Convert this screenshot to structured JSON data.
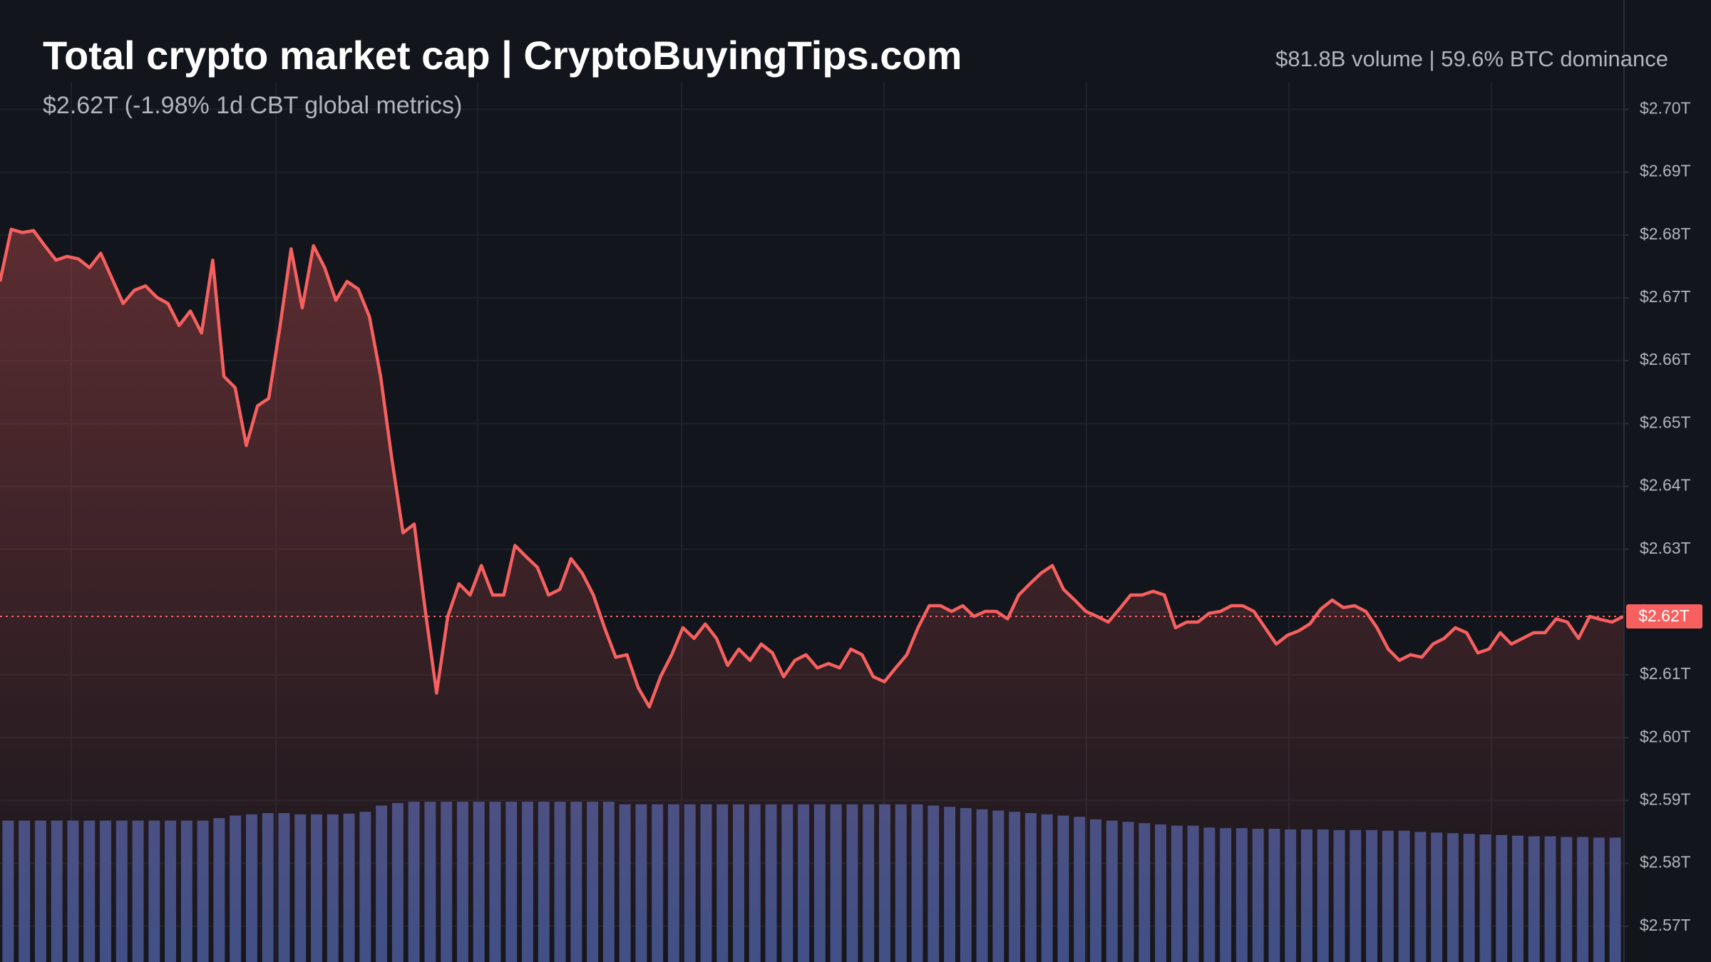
{
  "chart_data": {
    "type": "line",
    "title": "Total crypto market cap | CryptoBuyingTips.com",
    "subtitle": "$2.62T (-1.98% 1d CBT global metrics)",
    "header_right": "$81.8B volume | 59.6% BTC dominance",
    "last_price_label": "$2.62T",
    "color": "#f7605f",
    "volume_color": "#3d4f86",
    "grid": true,
    "ylim": [
      2.5643,
      2.7174
    ],
    "yticks": [
      {
        "value": 2.57,
        "label": "$2.57T"
      },
      {
        "value": 2.58,
        "label": "$2.58T"
      },
      {
        "value": 2.59,
        "label": "$2.59T"
      },
      {
        "value": 2.6,
        "label": "$2.60T"
      },
      {
        "value": 2.61,
        "label": "$2.61T"
      },
      {
        "value": 2.62,
        "label": "$2.62T"
      },
      {
        "value": 2.63,
        "label": "$2.63T"
      },
      {
        "value": 2.64,
        "label": "$2.64T"
      },
      {
        "value": 2.65,
        "label": "$2.65T"
      },
      {
        "value": 2.66,
        "label": "$2.66T"
      },
      {
        "value": 2.67,
        "label": "$2.67T"
      },
      {
        "value": 2.68,
        "label": "$2.68T"
      },
      {
        "value": 2.69,
        "label": "$2.69T"
      },
      {
        "value": 2.7,
        "label": "$2.70T"
      }
    ],
    "values": [
      2.6726,
      2.6809,
      2.6804,
      2.6807,
      2.6783,
      2.676,
      2.6766,
      2.6762,
      2.6748,
      2.6771,
      2.6731,
      2.6691,
      2.6712,
      2.6719,
      2.6701,
      2.6691,
      2.6656,
      2.6679,
      2.6644,
      2.676,
      2.6575,
      2.6557,
      2.6465,
      2.6528,
      2.654,
      2.6653,
      2.6778,
      2.6684,
      2.6783,
      2.6748,
      2.6696,
      2.6726,
      2.6714,
      2.667,
      2.6575,
      2.6444,
      2.6326,
      2.634,
      2.6201,
      2.6071,
      2.6193,
      2.6245,
      2.6227,
      2.6274,
      2.6227,
      2.6227,
      2.6306,
      2.6288,
      2.6271,
      2.6227,
      2.6236,
      2.6285,
      2.6262,
      2.6227,
      2.6175,
      2.6128,
      2.6132,
      2.608,
      2.6049,
      2.6097,
      2.6132,
      2.6175,
      2.6158,
      2.6181,
      2.6158,
      2.6115,
      2.6141,
      2.6123,
      2.6149,
      2.6135,
      2.6097,
      2.6123,
      2.6132,
      2.6111,
      2.6118,
      2.6111,
      2.6141,
      2.6132,
      2.6097,
      2.6089,
      2.6111,
      2.6132,
      2.6175,
      2.621,
      2.621,
      2.6201,
      2.621,
      2.6193,
      2.6201,
      2.6201,
      2.6189,
      2.6227,
      2.6245,
      2.6262,
      2.6274,
      2.6236,
      2.6219,
      2.6201,
      2.6193,
      2.6184,
      2.6205,
      2.6227,
      2.6227,
      2.6233,
      2.6227,
      2.6175,
      2.6184,
      2.6184,
      2.6198,
      2.6201,
      2.621,
      2.621,
      2.6201,
      2.6175,
      2.6149,
      2.6163,
      2.617,
      2.6181,
      2.6205,
      2.6219,
      2.6207,
      2.621,
      2.6201,
      2.6175,
      2.6141,
      2.6123,
      2.6132,
      2.6128,
      2.6149,
      2.6158,
      2.6175,
      2.6167,
      2.6135,
      2.6141,
      2.6167,
      2.6149,
      2.6158,
      2.6167,
      2.6167,
      2.6189,
      2.6184,
      2.6158,
      2.6193,
      2.6188,
      2.6184,
      2.6193
    ],
    "volume_values": [
      2.5868,
      2.5868,
      2.5868,
      2.5868,
      2.5868,
      2.5868,
      2.5868,
      2.5868,
      2.5868,
      2.5868,
      2.5868,
      2.5868,
      2.5868,
      2.5872,
      2.5876,
      2.5878,
      2.588,
      2.588,
      2.5878,
      2.5878,
      2.5878,
      2.5879,
      2.5882,
      2.5892,
      2.5896,
      2.5898,
      2.5898,
      2.5898,
      2.5898,
      2.5898,
      2.5898,
      2.5898,
      2.5898,
      2.5898,
      2.5898,
      2.5898,
      2.5898,
      2.5898,
      2.5894,
      2.5894,
      2.5894,
      2.5894,
      2.5894,
      2.5894,
      2.5894,
      2.5894,
      2.5894,
      2.5894,
      2.5894,
      2.5894,
      2.5894,
      2.5894,
      2.5894,
      2.5894,
      2.5894,
      2.5894,
      2.5894,
      2.5892,
      2.589,
      2.5888,
      2.5886,
      2.5884,
      2.5882,
      2.588,
      2.5878,
      2.5876,
      2.5874,
      2.587,
      2.5868,
      2.5866,
      2.5864,
      2.5862,
      2.586,
      2.586,
      2.5857,
      2.5856,
      2.5856,
      2.5855,
      2.5855,
      2.5854,
      2.5854,
      2.5854,
      2.5853,
      2.5853,
      2.5853,
      2.5852,
      2.5852,
      2.585,
      2.5849,
      2.5848,
      2.5847,
      2.5846,
      2.5845,
      2.5844,
      2.5843,
      2.5843,
      2.5842,
      2.5842,
      2.5841,
      2.5841
    ]
  }
}
